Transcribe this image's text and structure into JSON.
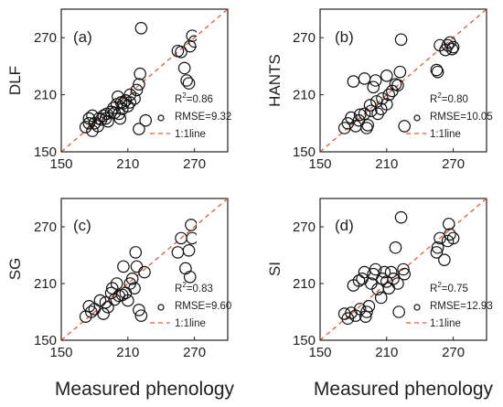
{
  "figure": {
    "x_axis_label": "Measured phenology",
    "legend_entries": {
      "marker": "",
      "line": "1:1line"
    }
  },
  "chart_data": [
    {
      "type": "scatter",
      "panel_label": "(a)",
      "ylabel": "DLF",
      "xlabel": "Measured phenology",
      "xlim": [
        150,
        300
      ],
      "ylim": [
        150,
        300
      ],
      "xticks": [
        "150",
        "210",
        "270"
      ],
      "yticks": [
        "150",
        "210",
        "270"
      ],
      "r2_prefix": "R",
      "r2_sup": "2",
      "r2_value": "=0.86",
      "rmse": "RMSE=9.32",
      "line_label": "1:1line",
      "points": [
        [
          172,
          176
        ],
        [
          175,
          180
        ],
        [
          175,
          185
        ],
        [
          178,
          172
        ],
        [
          178,
          188
        ],
        [
          180,
          180
        ],
        [
          183,
          177
        ],
        [
          184,
          185
        ],
        [
          186,
          184
        ],
        [
          188,
          188
        ],
        [
          190,
          185
        ],
        [
          191,
          190
        ],
        [
          192,
          182
        ],
        [
          195,
          192
        ],
        [
          197,
          196
        ],
        [
          198,
          191
        ],
        [
          200,
          200
        ],
        [
          201,
          208
        ],
        [
          202,
          190
        ],
        [
          203,
          185
        ],
        [
          204,
          202
        ],
        [
          205,
          195
        ],
        [
          206,
          201
        ],
        [
          208,
          204
        ],
        [
          210,
          198
        ],
        [
          212,
          210
        ],
        [
          212,
          202
        ],
        [
          216,
          206
        ],
        [
          218,
          215
        ],
        [
          220,
          174
        ],
        [
          220,
          221
        ],
        [
          221,
          232
        ],
        [
          222,
          280
        ],
        [
          226,
          183
        ],
        [
          255,
          256
        ],
        [
          258,
          255
        ],
        [
          261,
          238
        ],
        [
          263,
          225
        ],
        [
          265,
          222
        ],
        [
          266,
          261
        ],
        [
          268,
          272
        ],
        [
          270,
          266
        ]
      ]
    },
    {
      "type": "scatter",
      "panel_label": "(b)",
      "ylabel": "HANTS",
      "xlabel": "Measured phenology",
      "xlim": [
        150,
        300
      ],
      "ylim": [
        150,
        300
      ],
      "xticks": [
        "150",
        "210",
        "270"
      ],
      "yticks": [
        "150",
        "210",
        "270"
      ],
      "r2_prefix": "R",
      "r2_sup": "2",
      "r2_value": "=0.80",
      "rmse": "RMSE=10.05",
      "line_label": "1:1line",
      "points": [
        [
          172,
          175
        ],
        [
          175,
          180
        ],
        [
          178,
          186
        ],
        [
          180,
          224
        ],
        [
          182,
          177
        ],
        [
          185,
          183
        ],
        [
          186,
          189
        ],
        [
          190,
          190
        ],
        [
          190,
          227
        ],
        [
          192,
          175
        ],
        [
          193,
          178
        ],
        [
          195,
          199
        ],
        [
          196,
          193
        ],
        [
          198,
          218
        ],
        [
          200,
          225
        ],
        [
          201,
          203
        ],
        [
          202,
          190
        ],
        [
          205,
          195
        ],
        [
          206,
          206
        ],
        [
          210,
          230
        ],
        [
          210,
          200
        ],
        [
          212,
          210
        ],
        [
          215,
          214
        ],
        [
          218,
          221
        ],
        [
          220,
          220
        ],
        [
          222,
          234
        ],
        [
          223,
          268
        ],
        [
          226,
          177
        ],
        [
          255,
          236
        ],
        [
          256,
          234
        ],
        [
          258,
          262
        ],
        [
          263,
          257
        ],
        [
          265,
          262
        ],
        [
          267,
          265
        ],
        [
          269,
          258
        ],
        [
          270,
          260
        ]
      ]
    },
    {
      "type": "scatter",
      "panel_label": "(c)",
      "ylabel": "SG",
      "xlabel": "Measured phenology",
      "xlim": [
        150,
        300
      ],
      "ylim": [
        150,
        300
      ],
      "xticks": [
        "150",
        "210",
        "270"
      ],
      "yticks": [
        "150",
        "210",
        "270"
      ],
      "r2_prefix": "R",
      "r2_sup": "2",
      "r2_value": "=0.83",
      "rmse": "RMSE=9.60",
      "line_label": "1:1line",
      "points": [
        [
          172,
          175
        ],
        [
          175,
          186
        ],
        [
          177,
          180
        ],
        [
          180,
          183
        ],
        [
          185,
          192
        ],
        [
          188,
          178
        ],
        [
          190,
          190
        ],
        [
          192,
          185
        ],
        [
          195,
          200
        ],
        [
          196,
          205
        ],
        [
          198,
          193
        ],
        [
          200,
          210
        ],
        [
          202,
          197
        ],
        [
          205,
          198
        ],
        [
          206,
          228
        ],
        [
          208,
          200
        ],
        [
          210,
          192
        ],
        [
          212,
          210
        ],
        [
          214,
          215
        ],
        [
          216,
          205
        ],
        [
          217,
          243
        ],
        [
          218,
          228
        ],
        [
          220,
          182
        ],
        [
          222,
          176
        ],
        [
          225,
          222
        ],
        [
          255,
          243
        ],
        [
          258,
          258
        ],
        [
          262,
          226
        ],
        [
          265,
          245
        ],
        [
          266,
          217
        ],
        [
          267,
          272
        ],
        [
          268,
          258
        ]
      ]
    },
    {
      "type": "scatter",
      "panel_label": "(d)",
      "ylabel": "SI",
      "xlabel": "Measured phenology",
      "xlim": [
        150,
        300
      ],
      "ylim": [
        150,
        300
      ],
      "xticks": [
        "150",
        "210",
        "270"
      ],
      "yticks": [
        "150",
        "210",
        "270"
      ],
      "r2_prefix": "R",
      "r2_sup": "2",
      "r2_value": "=0.75",
      "rmse": "RMSE=12.93",
      "line_label": "1:1line",
      "points": [
        [
          172,
          178
        ],
        [
          175,
          173
        ],
        [
          178,
          179
        ],
        [
          180,
          208
        ],
        [
          182,
          176
        ],
        [
          185,
          213
        ],
        [
          186,
          183
        ],
        [
          188,
          215
        ],
        [
          190,
          222
        ],
        [
          191,
          175
        ],
        [
          192,
          180
        ],
        [
          194,
          186
        ],
        [
          196,
          210
        ],
        [
          198,
          220
        ],
        [
          200,
          225
        ],
        [
          202,
          204
        ],
        [
          205,
          195
        ],
        [
          206,
          215
        ],
        [
          208,
          222
        ],
        [
          210,
          212
        ],
        [
          212,
          205
        ],
        [
          214,
          222
        ],
        [
          216,
          215
        ],
        [
          218,
          248
        ],
        [
          220,
          210
        ],
        [
          221,
          180
        ],
        [
          223,
          280
        ],
        [
          225,
          225
        ],
        [
          226,
          220
        ],
        [
          255,
          243
        ],
        [
          256,
          248
        ],
        [
          258,
          258
        ],
        [
          262,
          235
        ],
        [
          265,
          255
        ],
        [
          266,
          273
        ],
        [
          267,
          262
        ],
        [
          270,
          258
        ]
      ]
    }
  ]
}
